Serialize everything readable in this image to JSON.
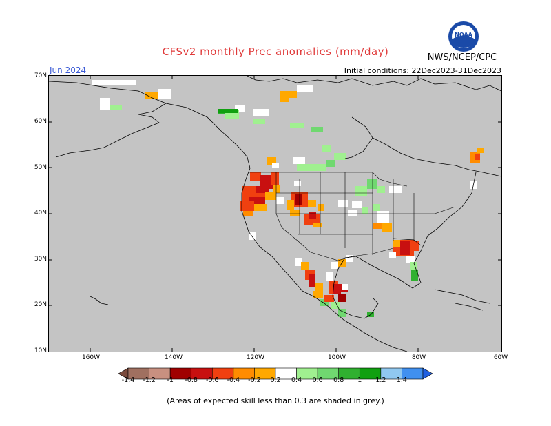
{
  "title": "CFSv2 monthly Prec anomalies (mm/day)",
  "producer": "NWS/NCEP/CPC",
  "period": "Jun 2024",
  "initial_conditions": "Initial conditions: 22Dec2023-31Dec2023",
  "footnote": "(Areas of expected skill less than 0.3 are shaded in grey.)",
  "logo_text": "NOAA",
  "axes": {
    "lat_labels": [
      "70N",
      "60N",
      "50N",
      "40N",
      "30N",
      "20N",
      "10N"
    ],
    "lon_labels": [
      "160W",
      "140W",
      "120W",
      "100W",
      "80W",
      "60W"
    ]
  },
  "colorbar": {
    "labels": [
      "-1.4",
      "-1.2",
      "-1",
      "-0.8",
      "-0.6",
      "-0.4",
      "-0.2",
      "0.2",
      "0.4",
      "0.6",
      "0.8",
      "1",
      "1.2",
      "1.4"
    ],
    "colors": [
      "#7a4a3c",
      "#a07060",
      "#c89080",
      "#a00000",
      "#c81010",
      "#f04010",
      "#ff8c00",
      "#ffa800",
      "#ffffff",
      "#a0f090",
      "#70d870",
      "#30b030",
      "#10a010",
      "#90c8f0",
      "#4090f0",
      "#2060e0"
    ]
  },
  "colors": {
    "skill_mask_grey": "#c4c4c4",
    "title_red": "#e03a3a",
    "period_blue": "#3b5bd6"
  }
}
